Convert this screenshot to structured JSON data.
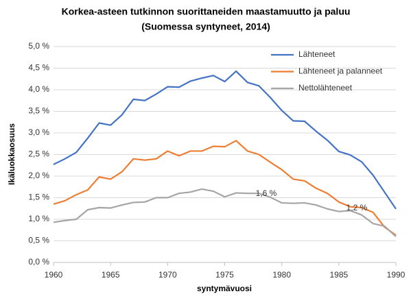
{
  "chart_data": {
    "type": "line",
    "title": "Korkea-asteen tutkinnon suorittaneiden maastamuutto ja paluu",
    "subtitle": "(Suomessa syntyneet, 2014)",
    "x_label": "syntymävuosi",
    "y_label": "Ikäluokkaosuus",
    "x": [
      1960,
      1961,
      1962,
      1963,
      1964,
      1965,
      1966,
      1967,
      1968,
      1969,
      1970,
      1971,
      1972,
      1973,
      1974,
      1975,
      1976,
      1977,
      1978,
      1979,
      1980,
      1981,
      1982,
      1983,
      1984,
      1985,
      1986,
      1987,
      1988,
      1989,
      1990
    ],
    "series": [
      {
        "name": "Lähteneet",
        "color": "#4472c4",
        "values": [
          2.27,
          2.4,
          2.55,
          2.88,
          3.23,
          3.18,
          3.42,
          3.78,
          3.75,
          3.9,
          4.07,
          4.06,
          4.2,
          4.27,
          4.33,
          4.19,
          4.43,
          4.17,
          4.09,
          3.82,
          3.52,
          3.28,
          3.27,
          3.04,
          2.83,
          2.57,
          2.49,
          2.33,
          2.02,
          1.63,
          1.24
        ]
      },
      {
        "name": "Lähteneet ja palanneet",
        "color": "#ed7d31",
        "values": [
          1.35,
          1.43,
          1.57,
          1.68,
          1.98,
          1.93,
          2.1,
          2.4,
          2.37,
          2.4,
          2.58,
          2.47,
          2.58,
          2.58,
          2.69,
          2.68,
          2.82,
          2.58,
          2.5,
          2.32,
          2.15,
          1.93,
          1.89,
          1.72,
          1.6,
          1.4,
          1.29,
          1.27,
          1.16,
          0.82,
          0.63
        ]
      },
      {
        "name": "Nettolähteneet",
        "color": "#a5a5a5",
        "values": [
          0.93,
          0.97,
          1.0,
          1.22,
          1.27,
          1.26,
          1.33,
          1.39,
          1.4,
          1.5,
          1.5,
          1.6,
          1.63,
          1.7,
          1.65,
          1.52,
          1.61,
          1.6,
          1.6,
          1.51,
          1.38,
          1.37,
          1.38,
          1.33,
          1.24,
          1.18,
          1.2,
          1.1,
          0.9,
          0.84,
          0.6
        ]
      }
    ],
    "annotations": [
      "1,6 %",
      "1,2 %"
    ],
    "xlim": [
      1960,
      1990
    ],
    "xticks": [
      1960,
      1965,
      1970,
      1975,
      1980,
      1985,
      1990
    ],
    "ylim": [
      0,
      5
    ],
    "yticks": [
      {
        "value": 0,
        "label": "0,0 %"
      },
      {
        "value": 0.5,
        "label": "0,5 %"
      },
      {
        "value": 1,
        "label": "1,0 %"
      },
      {
        "value": 1.5,
        "label": "1,5 %"
      },
      {
        "value": 2,
        "label": "2,0 %"
      },
      {
        "value": 2.5,
        "label": "2,5 %"
      },
      {
        "value": 3,
        "label": "3,0 %"
      },
      {
        "value": 3.5,
        "label": "3,5 %"
      },
      {
        "value": 4,
        "label": "4,0 %"
      },
      {
        "value": 4.5,
        "label": "4,5 %"
      },
      {
        "value": 5,
        "label": "5,0 %"
      }
    ],
    "grid": true,
    "legend": "upper right"
  }
}
